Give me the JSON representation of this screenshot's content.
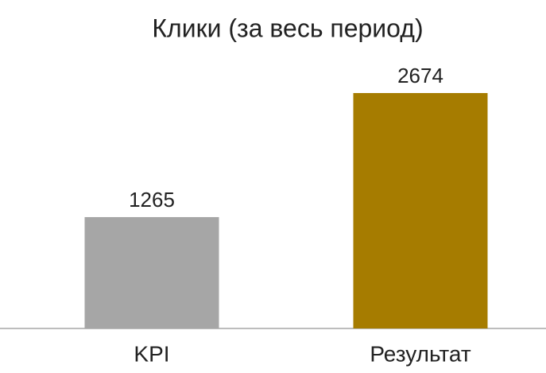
{
  "chart_data": {
    "type": "bar",
    "title": "Клики (за весь период)",
    "categories": [
      "KPI",
      "Результат"
    ],
    "values": [
      1265,
      2674
    ],
    "colors": [
      "#a6a6a6",
      "#a67c00"
    ]
  }
}
